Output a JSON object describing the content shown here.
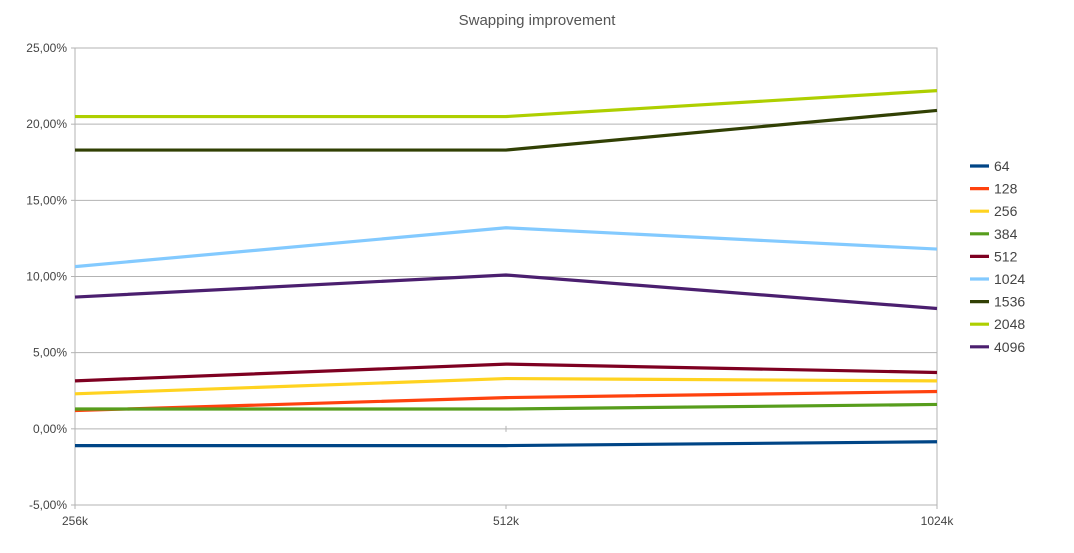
{
  "chart_data": {
    "type": "line",
    "title": "Swapping improvement",
    "xlabel": "",
    "ylabel": "",
    "categories": [
      "256k",
      "512k",
      "1024k"
    ],
    "ylim": [
      -5,
      25
    ],
    "yticks": [
      -5,
      0,
      5,
      10,
      15,
      20,
      25
    ],
    "ytick_labels": [
      "-5,00%",
      "0,00%",
      "5,00%",
      "10,00%",
      "15,00%",
      "20,00%",
      "25,00%"
    ],
    "grid": "horizontal",
    "legend_position": "right",
    "series": [
      {
        "name": "64",
        "color": "#004586",
        "values": [
          -1.1,
          -1.1,
          -0.85
        ]
      },
      {
        "name": "128",
        "color": "#ff420e",
        "values": [
          1.2,
          2.05,
          2.45
        ]
      },
      {
        "name": "256",
        "color": "#ffd320",
        "values": [
          2.3,
          3.3,
          3.15
        ]
      },
      {
        "name": "384",
        "color": "#579d1c",
        "values": [
          1.3,
          1.3,
          1.6
        ]
      },
      {
        "name": "512",
        "color": "#7e0021",
        "values": [
          3.15,
          4.25,
          3.7
        ]
      },
      {
        "name": "1024",
        "color": "#83caff",
        "values": [
          10.65,
          13.2,
          11.8
        ]
      },
      {
        "name": "1536",
        "color": "#314004",
        "values": [
          18.3,
          18.3,
          20.9
        ]
      },
      {
        "name": "2048",
        "color": "#aecf00",
        "values": [
          20.5,
          20.5,
          22.2
        ]
      },
      {
        "name": "4096",
        "color": "#4b1f6f",
        "values": [
          8.65,
          10.1,
          7.9
        ]
      }
    ]
  }
}
